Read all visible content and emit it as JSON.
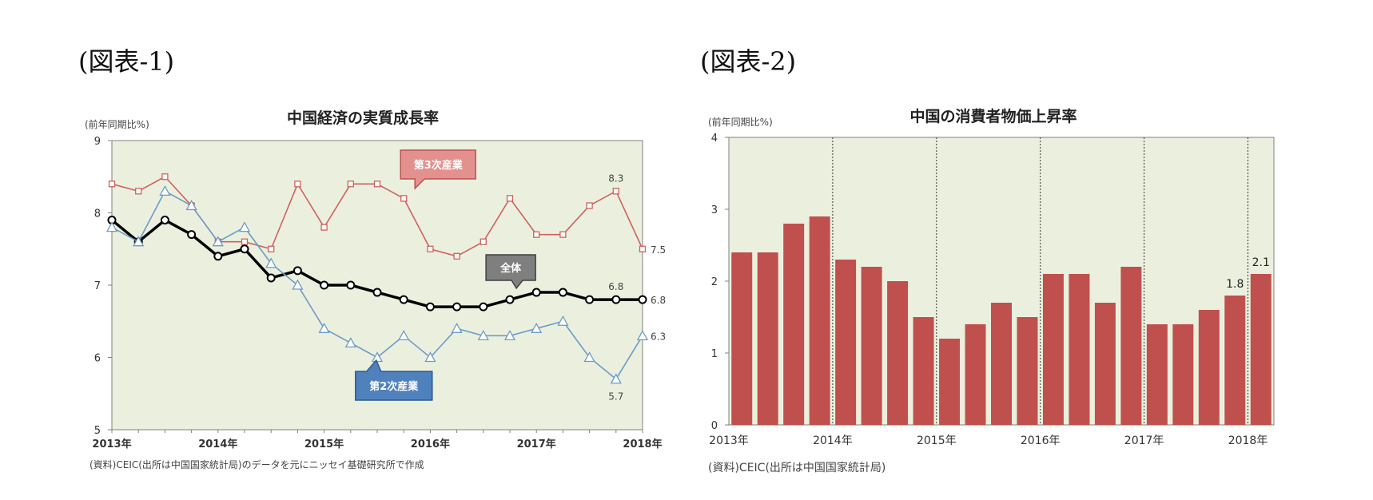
{
  "figure1": {
    "label": "(図表-1)"
  },
  "figure2": {
    "label": "(図表-2)"
  },
  "chart_data": [
    {
      "type": "line",
      "title": "中国経済の実質成長率",
      "ylabel": "(前年同期比%)",
      "source": "(資料)CEIC(出所は中国国家統計局)のデータを元にニッセイ基礎研究所で作成",
      "ylim": [
        5,
        9
      ],
      "yticks": [
        5,
        6,
        7,
        8,
        9
      ],
      "x_tick_labels": [
        "2013年",
        "2014年",
        "2015年",
        "2016年",
        "2017年",
        "2018年"
      ],
      "x_tick_index": [
        0,
        4,
        8,
        12,
        16,
        20
      ],
      "num_points": 21,
      "background": "#ebf0de",
      "series": [
        {
          "name": "第3次産業",
          "key": "tertiary",
          "color": "#d0605e",
          "marker": "square",
          "values": [
            8.4,
            8.3,
            8.5,
            8.1,
            7.6,
            7.6,
            7.5,
            8.4,
            7.8,
            8.4,
            8.4,
            8.2,
            7.5,
            7.4,
            7.6,
            8.2,
            7.7,
            7.7,
            8.1,
            8.3,
            7.5
          ]
        },
        {
          "name": "全体",
          "key": "total",
          "color": "#000000",
          "marker": "circle",
          "values": [
            7.9,
            7.6,
            7.9,
            7.7,
            7.4,
            7.5,
            7.1,
            7.2,
            7.0,
            7.0,
            6.9,
            6.8,
            6.7,
            6.7,
            6.7,
            6.8,
            6.9,
            6.9,
            6.8,
            6.8,
            6.8
          ]
        },
        {
          "name": "第2次産業",
          "key": "secondary",
          "color": "#6b9bc8",
          "marker": "triangle",
          "values": [
            7.8,
            7.6,
            8.3,
            8.1,
            7.6,
            7.8,
            7.3,
            7.0,
            6.4,
            6.2,
            6.0,
            6.3,
            6.0,
            6.4,
            6.3,
            6.3,
            6.4,
            6.5,
            6.0,
            5.7,
            6.3
          ]
        }
      ],
      "data_labels": [
        {
          "series": "tertiary",
          "index": 19,
          "text": "8.3",
          "pos": "above"
        },
        {
          "series": "tertiary",
          "index": 20,
          "text": "7.5",
          "pos": "right"
        },
        {
          "series": "total",
          "index": 19,
          "text": "6.8",
          "pos": "above"
        },
        {
          "series": "total",
          "index": 20,
          "text": "6.8",
          "pos": "right"
        },
        {
          "series": "secondary",
          "index": 19,
          "text": "5.7",
          "pos": "below"
        },
        {
          "series": "secondary",
          "index": 20,
          "text": "6.3",
          "pos": "right"
        }
      ],
      "callouts": [
        {
          "series": "tertiary",
          "text": "第3次産業",
          "fill": "#e3918f",
          "stroke": "#c0504d",
          "text_color": "#ffffff"
        },
        {
          "series": "total",
          "text": "全体",
          "fill": "#7f7f7f",
          "stroke": "#404040",
          "text_color": "#ffffff"
        },
        {
          "series": "secondary",
          "text": "第2次産業",
          "fill": "#4f81bd",
          "stroke": "#2c5b92",
          "text_color": "#ffffff"
        }
      ]
    },
    {
      "type": "bar",
      "title": "中国の消費者物価上昇率",
      "ylabel": "(前年同期比%)",
      "source": "(資料)CEIC(出所は中国国家統計局)",
      "ylim": [
        0,
        4
      ],
      "yticks": [
        0,
        1,
        2,
        3,
        4
      ],
      "x_tick_labels": [
        "2013年",
        "2014年",
        "2015年",
        "2016年",
        "2017年",
        "2018年"
      ],
      "x_tick_index": [
        0,
        4,
        8,
        12,
        16,
        20
      ],
      "num_points": 21,
      "background": "#ebf0de",
      "bar_color": "#c0504d",
      "values": [
        2.4,
        2.4,
        2.8,
        2.9,
        2.3,
        2.2,
        2.0,
        1.5,
        1.2,
        1.4,
        1.7,
        1.5,
        2.1,
        2.1,
        1.7,
        2.2,
        1.4,
        1.4,
        1.6,
        1.8,
        2.1
      ],
      "data_labels": [
        {
          "index": 19,
          "text": "1.8"
        },
        {
          "index": 20,
          "text": "2.1"
        }
      ]
    }
  ]
}
